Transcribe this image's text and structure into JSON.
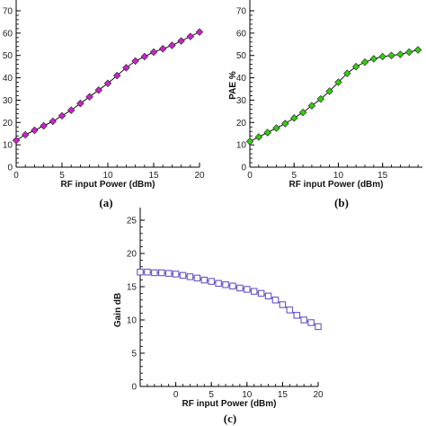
{
  "chart_data": [
    {
      "type": "line",
      "panel": "(a)",
      "title": "",
      "xlabel": "RF input Power (dBm)",
      "ylabel": "",
      "xlim": [
        0,
        20
      ],
      "ylim": [
        0,
        70
      ],
      "xticks": [
        0,
        5,
        10,
        15,
        20
      ],
      "yticks": [
        0,
        10,
        20,
        30,
        40,
        50,
        60,
        70
      ],
      "marker": "diamond",
      "color": "#cc22cc",
      "grid": false,
      "series": [
        {
          "x": [
            0,
            1,
            2,
            3,
            4,
            5,
            6,
            7,
            8,
            9,
            10,
            11,
            12,
            13,
            14,
            15,
            16,
            17,
            18,
            19,
            20
          ],
          "y": [
            12,
            14.5,
            16.5,
            18.5,
            20.5,
            23,
            25.5,
            28.5,
            31.5,
            34.5,
            37.5,
            41,
            44.5,
            47.5,
            49.5,
            51.5,
            53,
            54.5,
            56.5,
            58.5,
            60.5
          ]
        }
      ]
    },
    {
      "type": "line",
      "panel": "(b)",
      "title": "",
      "xlabel": "RF input Power (dBm)",
      "ylabel": "PAE %",
      "xlim": [
        0,
        19.5
      ],
      "ylim": [
        0,
        70
      ],
      "xticks": [
        0,
        5,
        10,
        15
      ],
      "yticks": [
        0,
        10,
        20,
        30,
        40,
        50,
        60,
        70
      ],
      "marker": "diamond",
      "color": "#33cc11",
      "grid": false,
      "series": [
        {
          "x": [
            0,
            1,
            2,
            3,
            4,
            5,
            6,
            7,
            8,
            9,
            10,
            11,
            12,
            13,
            14,
            15,
            16,
            17,
            18,
            19
          ],
          "y": [
            11.5,
            13.5,
            15.5,
            17.5,
            19.5,
            22,
            24.5,
            27.5,
            30.5,
            34,
            38,
            42,
            45,
            47,
            48.5,
            49.5,
            50,
            50.5,
            51.5,
            52.5
          ]
        }
      ]
    },
    {
      "type": "line",
      "panel": "(c)",
      "title": "",
      "xlabel": "RF input Power (dBm)",
      "ylabel": "Gain dB",
      "xlim": [
        -5,
        20
      ],
      "ylim": [
        0,
        25
      ],
      "xticks": [
        0,
        5,
        10,
        15,
        20
      ],
      "yticks": [
        0,
        5,
        10,
        15,
        20,
        25
      ],
      "marker": "square",
      "color": "#6655cc",
      "grid": false,
      "series": [
        {
          "x": [
            -5,
            -4,
            -3,
            -2,
            -1,
            0,
            1,
            2,
            3,
            4,
            5,
            6,
            7,
            8,
            9,
            10,
            11,
            12,
            13,
            14,
            15,
            16,
            17,
            18,
            19,
            20
          ],
          "y": [
            17.2,
            17.2,
            17.1,
            17.1,
            17.0,
            16.9,
            16.7,
            16.5,
            16.3,
            16.0,
            15.8,
            15.5,
            15.3,
            15.1,
            14.8,
            14.6,
            14.3,
            14.0,
            13.6,
            13.0,
            12.3,
            11.5,
            10.7,
            10.0,
            9.6,
            9.0
          ]
        }
      ]
    }
  ]
}
